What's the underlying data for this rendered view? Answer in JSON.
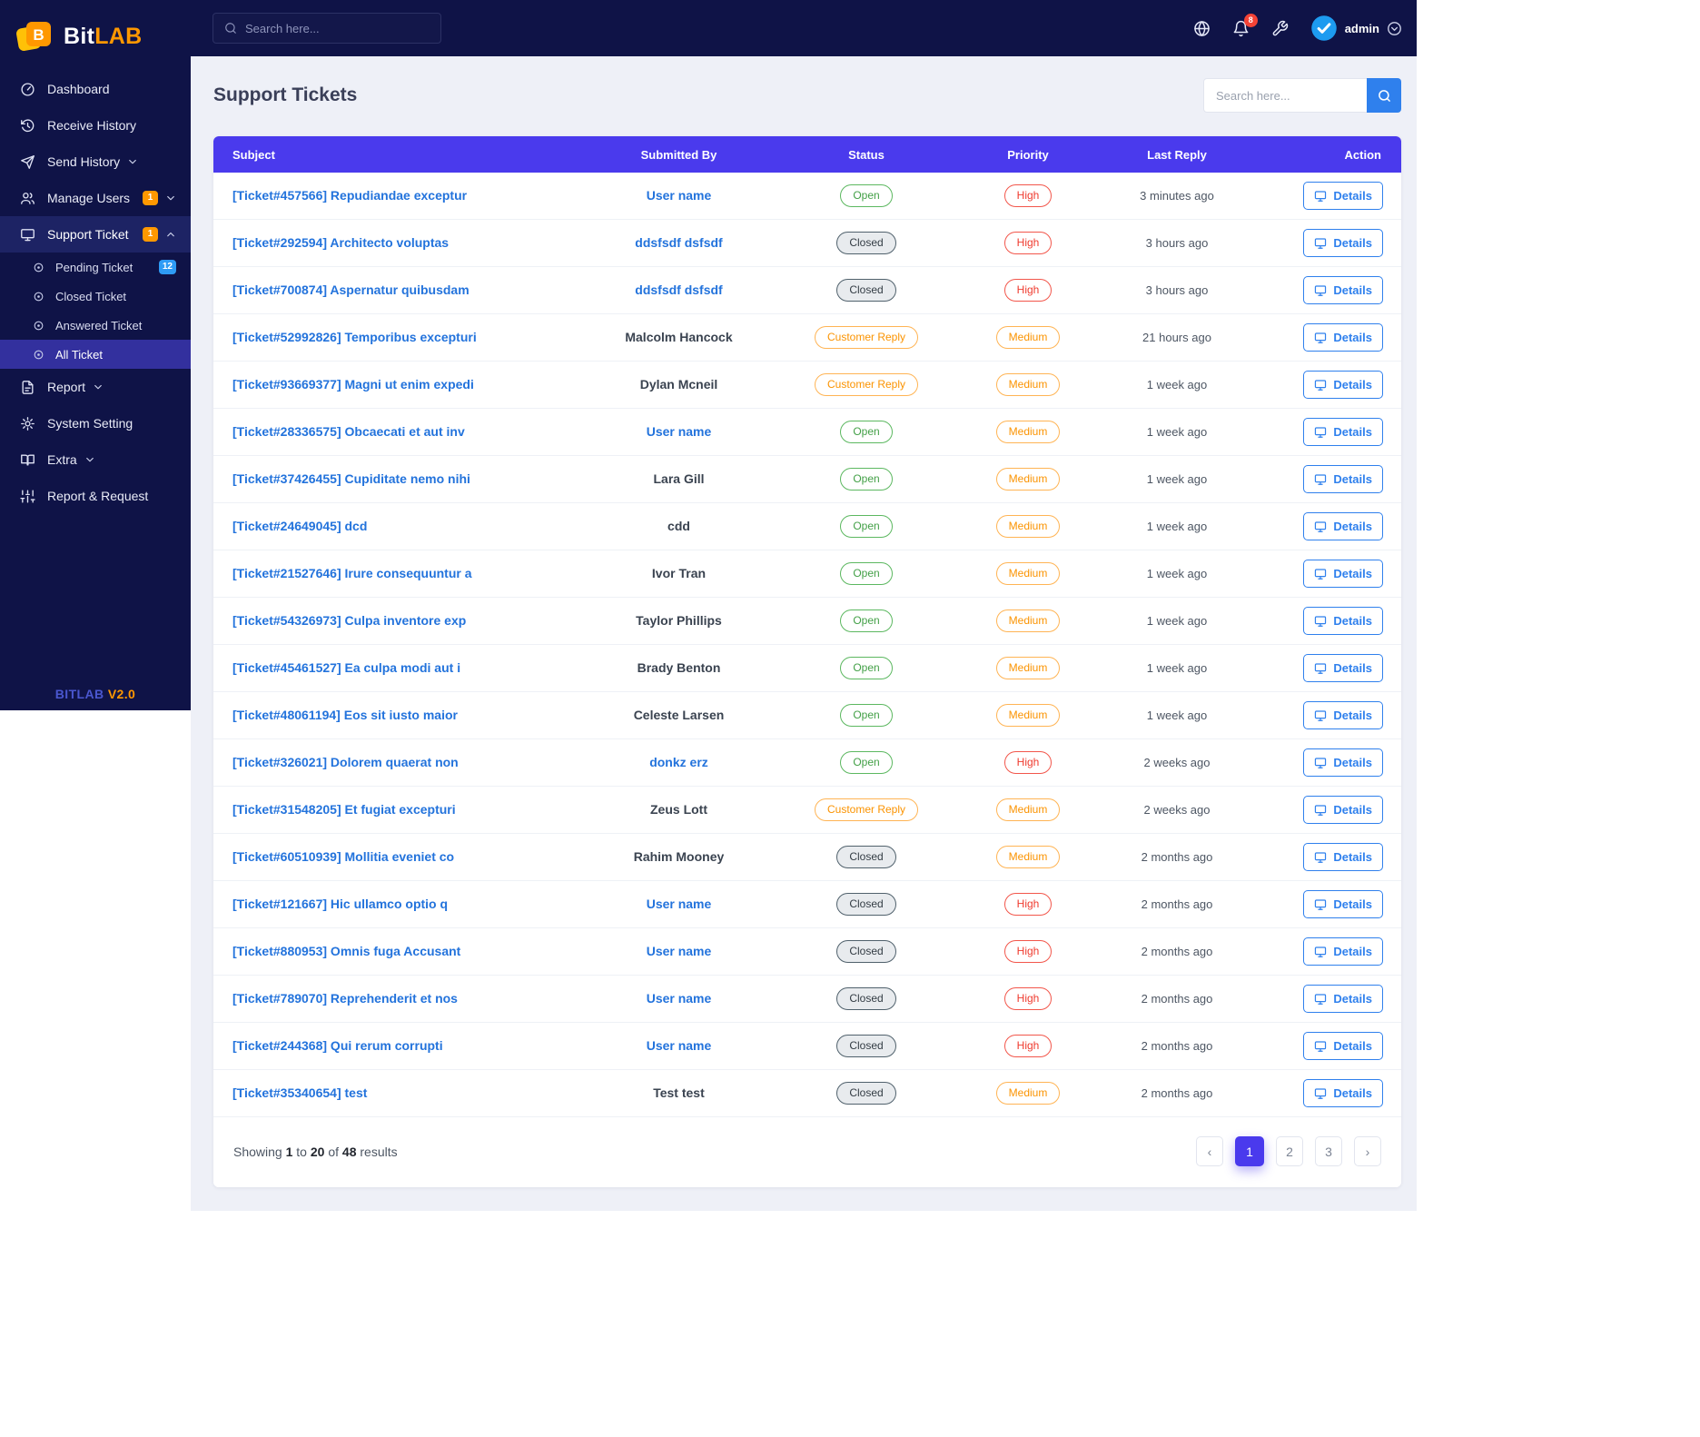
{
  "brand": {
    "name_primary": "Bit",
    "name_secondary": "LAB",
    "version_label": "BITLAB",
    "version_number": "V2.0",
    "logo_icon": "bitlab-logo-icon",
    "brand_orange": "#ff9800"
  },
  "topbar": {
    "search_placeholder": "Search here...",
    "notification_count": "8",
    "username": "admin",
    "icons": [
      "globe-icon",
      "bell-icon",
      "wrench-icon",
      "verified-avatar-icon",
      "chevron-down-circle-icon"
    ]
  },
  "sidebar": {
    "items": [
      {
        "id": "dashboard",
        "label": "Dashboard",
        "icon": "gauge-icon"
      },
      {
        "id": "receive-history",
        "label": "Receive History",
        "icon": "history-icon"
      },
      {
        "id": "send-history",
        "label": "Send History",
        "icon": "send-icon",
        "chevron": "down"
      },
      {
        "id": "manage-users",
        "label": "Manage Users",
        "icon": "users-icon",
        "badge": {
          "text": "1",
          "color": "orange"
        },
        "chevron": "down"
      },
      {
        "id": "support-ticket",
        "label": "Support Ticket",
        "icon": "ticket-icon",
        "badge": {
          "text": "1",
          "color": "orange"
        },
        "chevron": "up",
        "active": true,
        "children": [
          {
            "id": "pending-ticket",
            "label": "Pending Ticket",
            "badge": {
              "text": "12",
              "color": "blue"
            }
          },
          {
            "id": "closed-ticket",
            "label": "Closed Ticket"
          },
          {
            "id": "answered-ticket",
            "label": "Answered Ticket"
          },
          {
            "id": "all-ticket",
            "label": "All Ticket",
            "active": true
          }
        ]
      },
      {
        "id": "report",
        "label": "Report",
        "icon": "report-icon",
        "chevron": "down"
      },
      {
        "id": "system-setting",
        "label": "System Setting",
        "icon": "gear-icon"
      },
      {
        "id": "extra",
        "label": "Extra",
        "icon": "extra-icon",
        "chevron": "down"
      },
      {
        "id": "report-request",
        "label": "Report & Request",
        "icon": "sliders-icon"
      }
    ]
  },
  "page": {
    "title": "Support Tickets",
    "search_placeholder": "Search here..."
  },
  "table": {
    "headers": [
      "Subject",
      "Submitted By",
      "Status",
      "Priority",
      "Last Reply",
      "Action"
    ],
    "action_label": "Details",
    "header_color": "#4a3aed",
    "status_colors": {
      "open": "#43a047",
      "closed": "#333c44",
      "customer_reply": "#fb9300",
      "high": "#ef3b2f",
      "medium": "#fb9300"
    },
    "rows": [
      {
        "subject": "[Ticket#457566] Repudiandae exceptur",
        "submitted_by": "User name",
        "submitted_link": true,
        "status": "Open",
        "status_type": "open",
        "priority": "High",
        "priority_type": "high",
        "last_reply": "3 minutes ago"
      },
      {
        "subject": "[Ticket#292594] Architecto voluptas",
        "submitted_by": "ddsfsdf dsfsdf",
        "submitted_link": true,
        "status": "Closed",
        "status_type": "closed",
        "priority": "High",
        "priority_type": "high",
        "last_reply": "3 hours ago"
      },
      {
        "subject": "[Ticket#700874] Aspernatur quibusdam",
        "submitted_by": "ddsfsdf dsfsdf",
        "submitted_link": true,
        "status": "Closed",
        "status_type": "closed",
        "priority": "High",
        "priority_type": "high",
        "last_reply": "3 hours ago"
      },
      {
        "subject": "[Ticket#52992826] Temporibus excepturi",
        "submitted_by": "Malcolm Hancock",
        "submitted_link": false,
        "status": "Customer Reply",
        "status_type": "customer-reply",
        "priority": "Medium",
        "priority_type": "medium",
        "last_reply": "21 hours ago"
      },
      {
        "subject": "[Ticket#93669377] Magni ut enim expedi",
        "submitted_by": "Dylan Mcneil",
        "submitted_link": false,
        "status": "Customer Reply",
        "status_type": "customer-reply",
        "priority": "Medium",
        "priority_type": "medium",
        "last_reply": "1 week ago"
      },
      {
        "subject": "[Ticket#28336575] Obcaecati et aut inv",
        "submitted_by": "User name",
        "submitted_link": true,
        "status": "Open",
        "status_type": "open",
        "priority": "Medium",
        "priority_type": "medium",
        "last_reply": "1 week ago"
      },
      {
        "subject": "[Ticket#37426455] Cupiditate nemo nihi",
        "submitted_by": "Lara Gill",
        "submitted_link": false,
        "status": "Open",
        "status_type": "open",
        "priority": "Medium",
        "priority_type": "medium",
        "last_reply": "1 week ago"
      },
      {
        "subject": "[Ticket#24649045] dcd",
        "submitted_by": "cdd",
        "submitted_link": false,
        "status": "Open",
        "status_type": "open",
        "priority": "Medium",
        "priority_type": "medium",
        "last_reply": "1 week ago"
      },
      {
        "subject": "[Ticket#21527646] Irure consequuntur a",
        "submitted_by": "Ivor Tran",
        "submitted_link": false,
        "status": "Open",
        "status_type": "open",
        "priority": "Medium",
        "priority_type": "medium",
        "last_reply": "1 week ago"
      },
      {
        "subject": "[Ticket#54326973] Culpa inventore exp",
        "submitted_by": "Taylor Phillips",
        "submitted_link": false,
        "status": "Open",
        "status_type": "open",
        "priority": "Medium",
        "priority_type": "medium",
        "last_reply": "1 week ago"
      },
      {
        "subject": "[Ticket#45461527] Ea culpa modi aut i",
        "submitted_by": "Brady Benton",
        "submitted_link": false,
        "status": "Open",
        "status_type": "open",
        "priority": "Medium",
        "priority_type": "medium",
        "last_reply": "1 week ago"
      },
      {
        "subject": "[Ticket#48061194] Eos sit iusto maior",
        "submitted_by": "Celeste Larsen",
        "submitted_link": false,
        "status": "Open",
        "status_type": "open",
        "priority": "Medium",
        "priority_type": "medium",
        "last_reply": "1 week ago"
      },
      {
        "subject": "[Ticket#326021] Dolorem quaerat non",
        "submitted_by": "donkz erz",
        "submitted_link": true,
        "status": "Open",
        "status_type": "open",
        "priority": "High",
        "priority_type": "high",
        "last_reply": "2 weeks ago"
      },
      {
        "subject": "[Ticket#31548205] Et fugiat excepturi",
        "submitted_by": "Zeus Lott",
        "submitted_link": false,
        "status": "Customer Reply",
        "status_type": "customer-reply",
        "priority": "Medium",
        "priority_type": "medium",
        "last_reply": "2 weeks ago"
      },
      {
        "subject": "[Ticket#60510939] Mollitia eveniet co",
        "submitted_by": "Rahim Mooney",
        "submitted_link": false,
        "status": "Closed",
        "status_type": "closed",
        "priority": "Medium",
        "priority_type": "medium",
        "last_reply": "2 months ago"
      },
      {
        "subject": "[Ticket#121667] Hic ullamco optio q",
        "submitted_by": "User name",
        "submitted_link": true,
        "status": "Closed",
        "status_type": "closed",
        "priority": "High",
        "priority_type": "high",
        "last_reply": "2 months ago"
      },
      {
        "subject": "[Ticket#880953] Omnis fuga Accusant",
        "submitted_by": "User name",
        "submitted_link": true,
        "status": "Closed",
        "status_type": "closed",
        "priority": "High",
        "priority_type": "high",
        "last_reply": "2 months ago"
      },
      {
        "subject": "[Ticket#789070] Reprehenderit et nos",
        "submitted_by": "User name",
        "submitted_link": true,
        "status": "Closed",
        "status_type": "closed",
        "priority": "High",
        "priority_type": "high",
        "last_reply": "2 months ago"
      },
      {
        "subject": "[Ticket#244368] Qui rerum corrupti",
        "submitted_by": "User name",
        "submitted_link": true,
        "status": "Closed",
        "status_type": "closed",
        "priority": "High",
        "priority_type": "high",
        "last_reply": "2 months ago"
      },
      {
        "subject": "[Ticket#35340654] test",
        "submitted_by": "Test test",
        "submitted_link": false,
        "status": "Closed",
        "status_type": "closed",
        "priority": "Medium",
        "priority_type": "medium",
        "last_reply": "2 months ago"
      }
    ]
  },
  "pagination": {
    "summary": {
      "prefix": "Showing",
      "from": "1",
      "to_word": "to",
      "to": "20",
      "of_word": "of",
      "total": "48",
      "suffix": "results"
    },
    "pages": [
      {
        "name": "prev",
        "label": "‹"
      },
      {
        "name": "1",
        "label": "1",
        "active": true
      },
      {
        "name": "2",
        "label": "2"
      },
      {
        "name": "3",
        "label": "3"
      },
      {
        "name": "next",
        "label": "›"
      }
    ]
  }
}
